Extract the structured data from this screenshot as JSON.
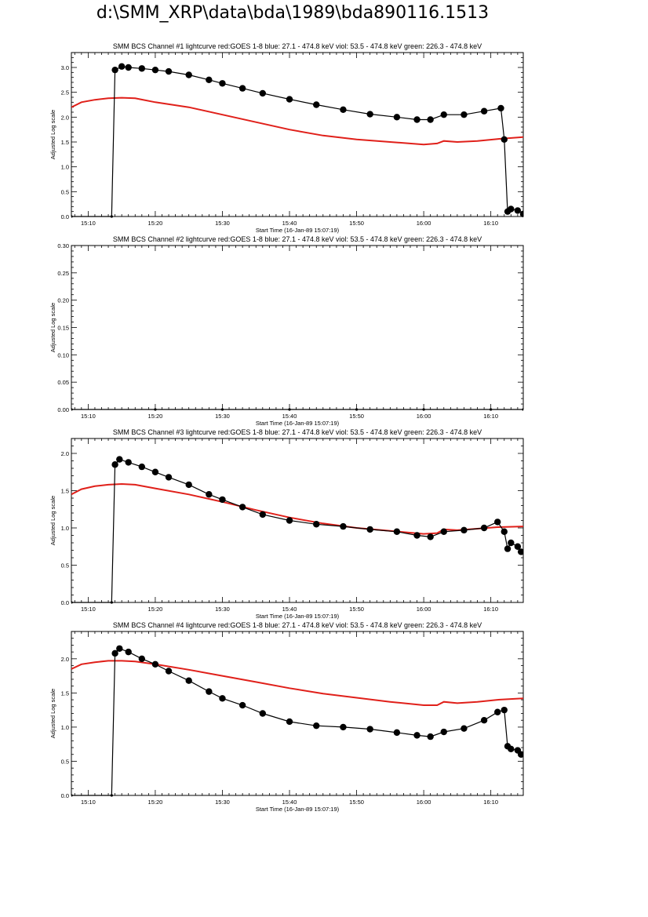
{
  "page_title": "d:\\SMM_XRP\\data\\bda\\1989\\bda890116.1513",
  "colors": {
    "goes": "#e0201a",
    "bcs": "#000000",
    "axes": "#000000"
  },
  "chart_data": [
    {
      "type": "line",
      "title": "SMM BCS Channel #1 lightcurve  red:GOES 1-8  blue: 27.1 - 474.8 keV  viol: 53.5 - 474.8 keV  green: 226.3 - 474.8 keV",
      "xlabel": "Start Time (16-Jan-89 15:07:19)",
      "ylabel": "Adjusted Log scale",
      "xlim": [
        "15:07:30",
        "16:14:50"
      ],
      "x_ticks": [
        "15:10",
        "15:20",
        "15:30",
        "15:40",
        "15:50",
        "16:00",
        "16:10"
      ],
      "ylim": [
        0,
        3.3
      ],
      "y_ticks": [
        "0.0",
        "0.5",
        "1.0",
        "1.5",
        "2.0",
        "2.5",
        "3.0"
      ],
      "grid": false,
      "series": [
        {
          "color": "#e0201a",
          "style": "line",
          "x": [
            "15:07:30",
            "15:09:00",
            "15:11:00",
            "15:13:00",
            "15:15:00",
            "15:17:00",
            "15:20:00",
            "15:25:00",
            "15:30:00",
            "15:35:00",
            "15:40:00",
            "15:45:00",
            "15:50:00",
            "15:55:00",
            "16:00:00",
            "16:02:00",
            "16:03:00",
            "16:05:00",
            "16:08:00",
            "16:11:00",
            "16:14:50"
          ],
          "y": [
            2.2,
            2.3,
            2.35,
            2.38,
            2.39,
            2.38,
            2.3,
            2.2,
            2.05,
            1.9,
            1.75,
            1.63,
            1.55,
            1.5,
            1.45,
            1.47,
            1.52,
            1.5,
            1.52,
            1.56,
            1.6
          ]
        },
        {
          "color": "#000000",
          "style": "line+markers",
          "x": [
            "15:07:30",
            "15:13:30",
            "15:14:00",
            "15:15:00",
            "15:16:00",
            "15:18:00",
            "15:20:00",
            "15:22:00",
            "15:25:00",
            "15:28:00",
            "15:30:00",
            "15:33:00",
            "15:36:00",
            "15:40:00",
            "15:44:00",
            "15:48:00",
            "15:52:00",
            "15:56:00",
            "15:59:00",
            "16:01:00",
            "16:03:00",
            "16:06:00",
            "16:09:00",
            "16:11:30",
            "16:12:00",
            "16:12:30",
            "16:13:00",
            "16:14:00",
            "16:14:50"
          ],
          "y": [
            0.0,
            0.0,
            2.95,
            3.02,
            3.0,
            2.98,
            2.95,
            2.92,
            2.85,
            2.75,
            2.68,
            2.58,
            2.48,
            2.36,
            2.25,
            2.15,
            2.06,
            2.0,
            1.95,
            1.95,
            2.05,
            2.05,
            2.12,
            2.18,
            1.55,
            0.1,
            0.15,
            0.12,
            0.05
          ]
        }
      ]
    },
    {
      "type": "line",
      "title": "SMM BCS Channel #2 lightcurve  red:GOES 1-8  blue: 27.1 - 474.8 keV  viol: 53.5 - 474.8 keV  green: 226.3 - 474.8 keV",
      "xlabel": "Start Time (16-Jan-89 15:07:19)",
      "ylabel": "Adjusted Log scale",
      "xlim": [
        "15:07:30",
        "16:14:50"
      ],
      "x_ticks": [
        "15:10",
        "15:20",
        "15:30",
        "15:40",
        "15:50",
        "16:00",
        "16:10"
      ],
      "ylim": [
        0,
        0.3
      ],
      "y_ticks": [
        "0.00",
        "0.05",
        "0.10",
        "0.15",
        "0.20",
        "0.25",
        "0.30"
      ],
      "grid": false,
      "series": [
        {
          "color": "#000000",
          "style": "line+markers",
          "x": [
            "15:07:30",
            "15:20:00",
            "15:30:00",
            "15:40:00",
            "15:50:00",
            "16:00:00",
            "16:10:00",
            "16:14:50"
          ],
          "y": [
            0.0,
            0.0,
            0.0,
            0.0,
            0.0,
            0.0,
            0.0,
            0.0
          ]
        }
      ]
    },
    {
      "type": "line",
      "title": "SMM BCS Channel #3 lightcurve  red:GOES 1-8  blue: 27.1 - 474.8 keV  viol: 53.5 - 474.8 keV  green: 226.3 - 474.8 keV",
      "xlabel": "Start Time (16-Jan-89 15:07:19)",
      "ylabel": "Adjusted Log scale",
      "xlim": [
        "15:07:30",
        "16:14:50"
      ],
      "x_ticks": [
        "15:10",
        "15:20",
        "15:30",
        "15:40",
        "15:50",
        "16:00",
        "16:10"
      ],
      "ylim": [
        0,
        2.2
      ],
      "y_ticks": [
        "0.0",
        "0.5",
        "1.0",
        "1.5",
        "2.0"
      ],
      "grid": false,
      "series": [
        {
          "color": "#e0201a",
          "style": "line",
          "x": [
            "15:07:30",
            "15:09:00",
            "15:11:00",
            "15:13:00",
            "15:15:00",
            "15:17:00",
            "15:20:00",
            "15:25:00",
            "15:30:00",
            "15:35:00",
            "15:40:00",
            "15:45:00",
            "15:50:00",
            "15:55:00",
            "16:00:00",
            "16:02:00",
            "16:03:00",
            "16:05:00",
            "16:08:00",
            "16:11:00",
            "16:14:50"
          ],
          "y": [
            1.45,
            1.52,
            1.56,
            1.58,
            1.59,
            1.58,
            1.53,
            1.45,
            1.35,
            1.24,
            1.14,
            1.06,
            1.0,
            0.96,
            0.92,
            0.93,
            0.98,
            0.97,
            0.99,
            1.01,
            1.02
          ]
        },
        {
          "color": "#000000",
          "style": "line+markers",
          "x": [
            "15:07:30",
            "15:13:30",
            "15:14:00",
            "15:14:40",
            "15:16:00",
            "15:18:00",
            "15:20:00",
            "15:22:00",
            "15:25:00",
            "15:28:00",
            "15:30:00",
            "15:33:00",
            "15:36:00",
            "15:40:00",
            "15:44:00",
            "15:48:00",
            "15:52:00",
            "15:56:00",
            "15:59:00",
            "16:01:00",
            "16:03:00",
            "16:06:00",
            "16:09:00",
            "16:11:00",
            "16:12:00",
            "16:12:30",
            "16:13:00",
            "16:14:00",
            "16:14:30"
          ],
          "y": [
            0.0,
            0.0,
            1.85,
            1.92,
            1.88,
            1.82,
            1.75,
            1.68,
            1.58,
            1.45,
            1.38,
            1.28,
            1.18,
            1.1,
            1.05,
            1.02,
            0.98,
            0.95,
            0.9,
            0.88,
            0.95,
            0.97,
            1.0,
            1.08,
            0.95,
            0.72,
            0.8,
            0.75,
            0.68
          ]
        }
      ]
    },
    {
      "type": "line",
      "title": "SMM BCS Channel #4 lightcurve  red:GOES 1-8  blue: 27.1 - 474.8 keV  viol: 53.5 - 474.8 keV  green: 226.3 - 474.8 keV",
      "xlabel": "Start Time (16-Jan-89 15:07:19)",
      "ylabel": "Adjusted Log scale",
      "xlim": [
        "15:07:30",
        "16:14:50"
      ],
      "x_ticks": [
        "15:10",
        "15:20",
        "15:30",
        "15:40",
        "15:50",
        "16:00",
        "16:10"
      ],
      "ylim": [
        0,
        2.4
      ],
      "y_ticks": [
        "0.0",
        "0.5",
        "1.0",
        "1.5",
        "2.0"
      ],
      "grid": false,
      "series": [
        {
          "color": "#e0201a",
          "style": "line",
          "x": [
            "15:07:30",
            "15:09:00",
            "15:11:00",
            "15:13:00",
            "15:15:00",
            "15:17:00",
            "15:20:00",
            "15:25:00",
            "15:30:00",
            "15:35:00",
            "15:40:00",
            "15:45:00",
            "15:50:00",
            "15:55:00",
            "16:00:00",
            "16:02:00",
            "16:03:00",
            "16:05:00",
            "16:08:00",
            "16:11:00",
            "16:14:50"
          ],
          "y": [
            1.85,
            1.92,
            1.95,
            1.97,
            1.97,
            1.96,
            1.92,
            1.84,
            1.75,
            1.66,
            1.57,
            1.49,
            1.43,
            1.37,
            1.32,
            1.32,
            1.37,
            1.35,
            1.37,
            1.4,
            1.42
          ]
        },
        {
          "color": "#000000",
          "style": "line+markers",
          "x": [
            "15:07:30",
            "15:13:30",
            "15:14:00",
            "15:14:40",
            "15:16:00",
            "15:18:00",
            "15:20:00",
            "15:22:00",
            "15:25:00",
            "15:28:00",
            "15:30:00",
            "15:33:00",
            "15:36:00",
            "15:40:00",
            "15:44:00",
            "15:48:00",
            "15:52:00",
            "15:56:00",
            "15:59:00",
            "16:01:00",
            "16:03:00",
            "16:06:00",
            "16:09:00",
            "16:11:00",
            "16:12:00",
            "16:12:30",
            "16:13:00",
            "16:14:00",
            "16:14:30"
          ],
          "y": [
            0.0,
            0.0,
            2.08,
            2.15,
            2.1,
            2.0,
            1.92,
            1.82,
            1.68,
            1.52,
            1.42,
            1.32,
            1.2,
            1.08,
            1.02,
            1.0,
            0.97,
            0.92,
            0.88,
            0.86,
            0.93,
            0.98,
            1.1,
            1.22,
            1.25,
            0.72,
            0.68,
            0.66,
            0.6
          ]
        }
      ]
    }
  ]
}
